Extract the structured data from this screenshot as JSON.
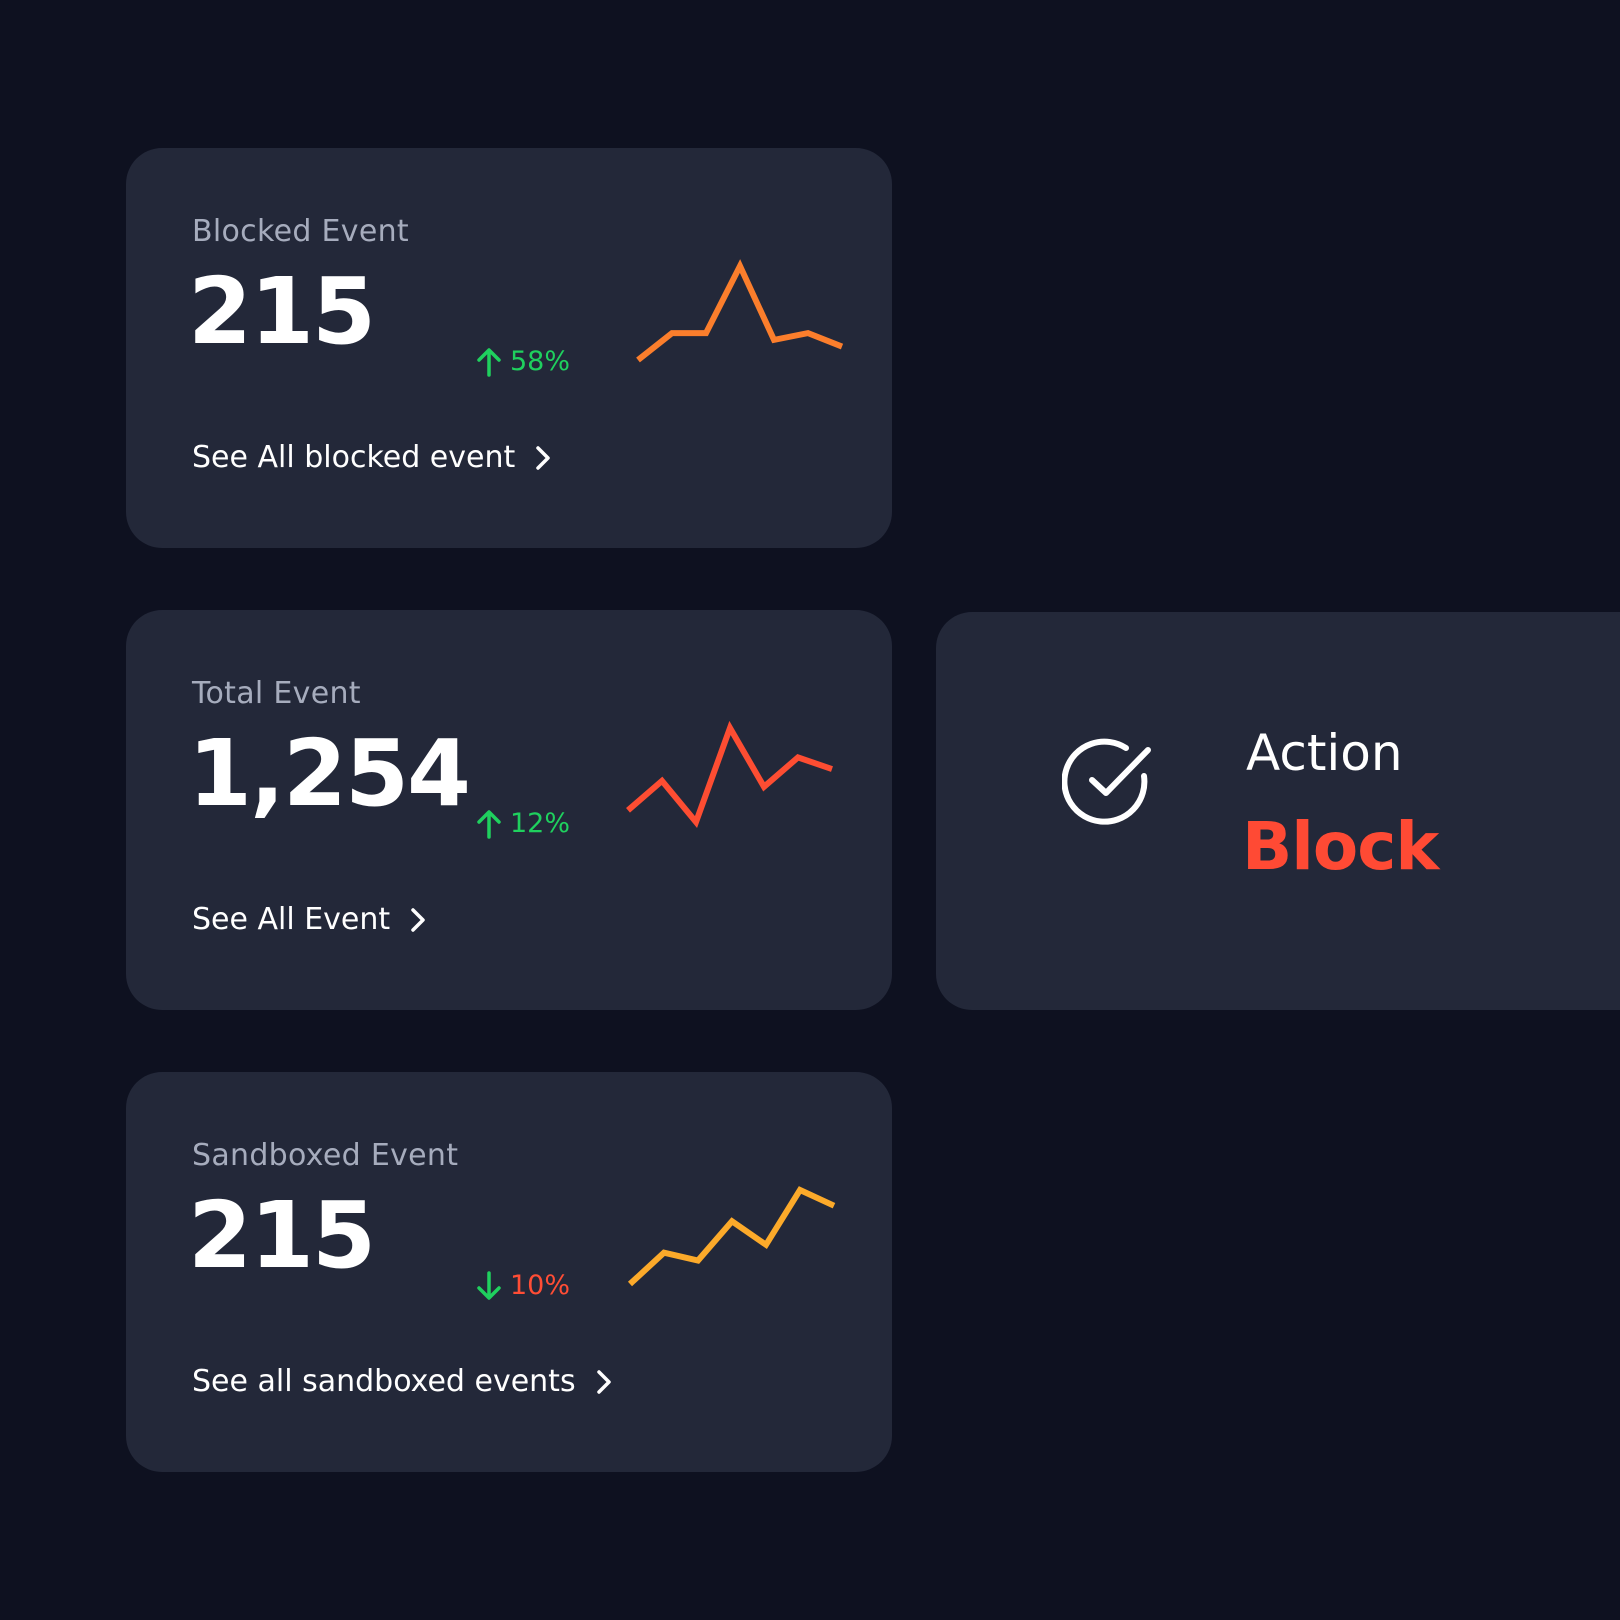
{
  "colors": {
    "background": "#0e1120",
    "card": "#232839",
    "positive": "#1fd05e",
    "negative": "#ff4d35",
    "action": "#ff4a34"
  },
  "cards": [
    {
      "id": "blocked",
      "label": "Blocked Event",
      "value": "215",
      "change": "58%",
      "trend": "up",
      "trend_icon": "arrow-up-icon",
      "link": "See All blocked event",
      "link_icon": "chevron-right-icon",
      "spark_color": "#fb7e2c",
      "sparkline": [
        2,
        4,
        4,
        9,
        3.5,
        4,
        3
      ]
    },
    {
      "id": "total",
      "label": "Total Event",
      "value": "1,254",
      "change": "12%",
      "trend": "up",
      "trend_icon": "arrow-up-icon",
      "link": "See All Event",
      "link_icon": "chevron-right-icon",
      "spark_color": "#fd4d32",
      "sparkline": [
        3,
        5.5,
        2,
        10,
        5,
        7.5,
        6.5
      ]
    },
    {
      "id": "sandboxed",
      "label": "Sandboxed Event",
      "value": "215",
      "change": "10%",
      "trend": "down",
      "trend_icon": "arrow-down-icon",
      "link": "See all sandboxed events",
      "link_icon": "chevron-right-icon",
      "spark_color": "#fcaa2a",
      "sparkline": [
        1,
        3,
        2.5,
        5,
        3.5,
        7,
        6
      ]
    }
  ],
  "action": {
    "icon": "check-circle-icon",
    "label": "Action",
    "value": "Block"
  }
}
